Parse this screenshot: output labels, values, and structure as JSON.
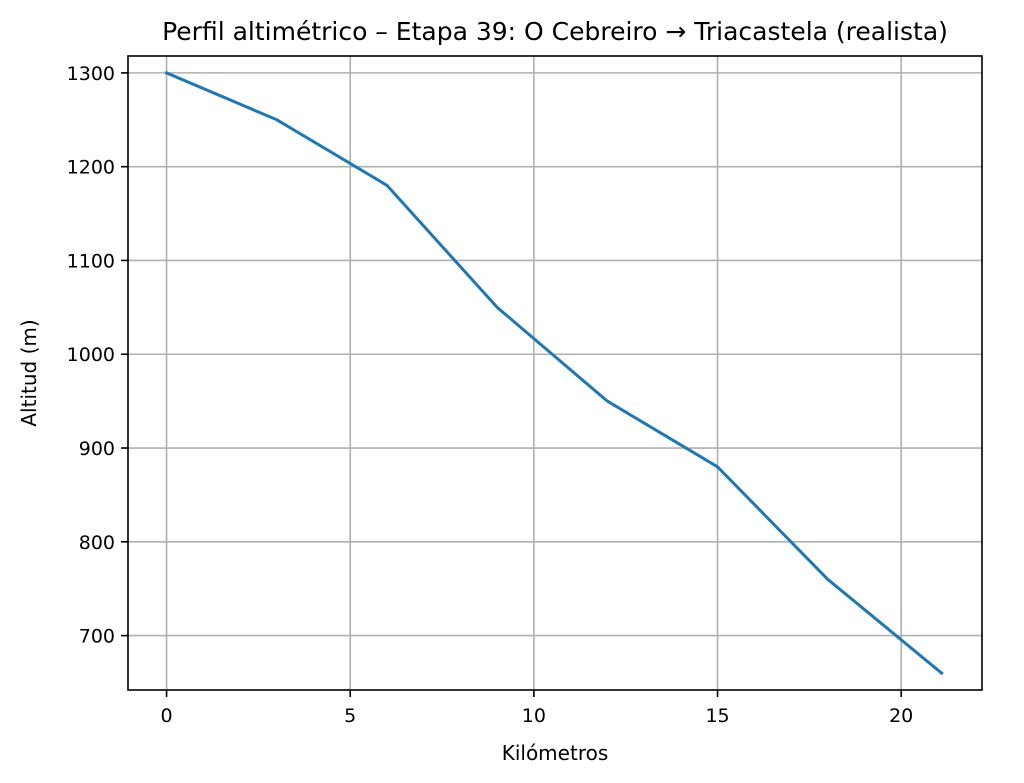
{
  "chart_data": {
    "type": "line",
    "title": "Perfil altimétrico – Etapa 39: O Cebreiro → Triacastela (realista)",
    "xlabel": "Kilómetros",
    "ylabel": "Altitud (m)",
    "xlim": [
      -1.05,
      22.2
    ],
    "ylim": [
      642,
      1318
    ],
    "xticks": [
      0,
      5,
      10,
      15,
      20
    ],
    "yticks": [
      700,
      800,
      900,
      1000,
      1100,
      1200,
      1300
    ],
    "grid": true,
    "series": [
      {
        "color": "#1f77b4",
        "x": [
          0,
          3,
          6,
          9,
          12,
          15,
          18,
          21.1
        ],
        "y": [
          1300,
          1250,
          1180,
          1050,
          950,
          880,
          760,
          660
        ]
      }
    ]
  }
}
